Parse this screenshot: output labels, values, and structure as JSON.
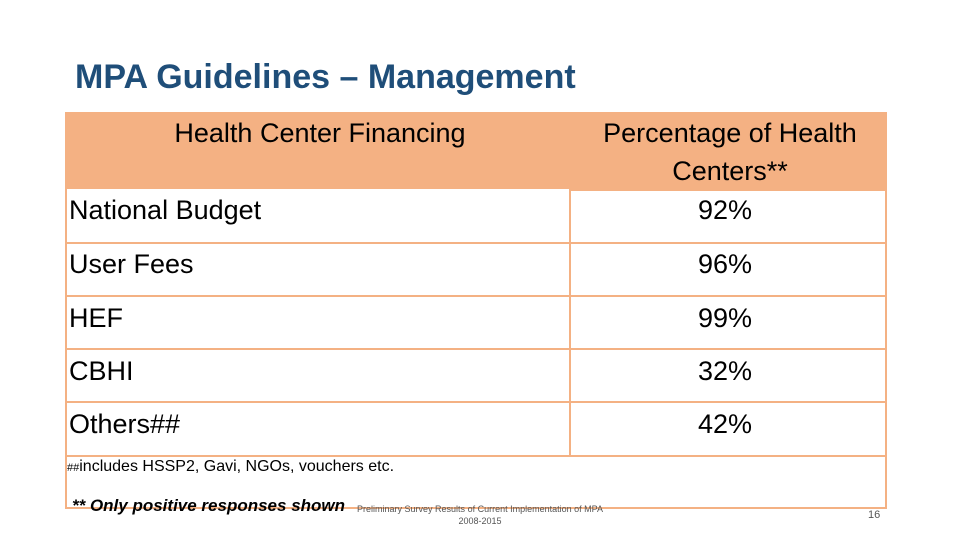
{
  "slide": {
    "title": "MPA Guidelines – Management",
    "page_number": "16"
  },
  "table": {
    "headers": [
      "Health Center Financing",
      "Percentage of Health Centers**"
    ],
    "rows": [
      {
        "label": "National Budget",
        "value": "92%"
      },
      {
        "label": "User Fees",
        "value": "96%"
      },
      {
        "label": "HEF",
        "value": "99%"
      },
      {
        "label": "CBHI",
        "value": "32%"
      },
      {
        "label": "Others##",
        "value": "42%"
      }
    ]
  },
  "notes": {
    "hash_marker": "##",
    "includes": "includes HSSP2, Gavi, NGOs, vouchers etc.",
    "positive_note": "** Only positive responses shown",
    "source_line1": "Preliminary Survey Results of Current Implementation of MPA",
    "source_line2": "2008-2015"
  },
  "colors": {
    "title": "#1f4e79",
    "header_fill": "#f4b183"
  }
}
